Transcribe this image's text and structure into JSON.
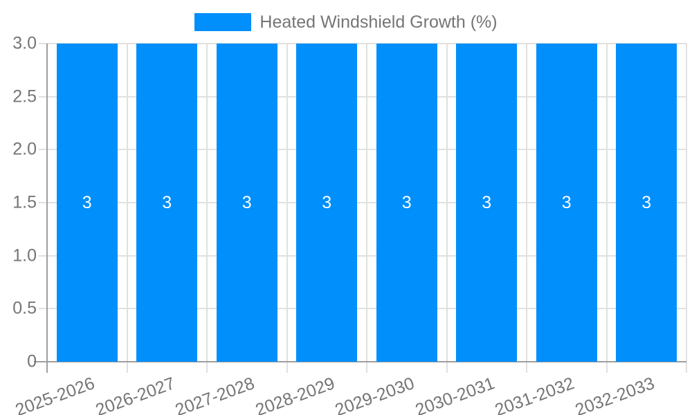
{
  "chart_data": {
    "type": "bar",
    "title": "Heated Windshield Growth (%)",
    "legend": {
      "label": "Heated Windshield Growth (%)",
      "position": "top"
    },
    "categories": [
      "2025-2026",
      "2026-2027",
      "2027-2028",
      "2028-2029",
      "2029-2030",
      "2030-2031",
      "2031-2032",
      "2032-2033"
    ],
    "series": [
      {
        "name": "Heated Windshield Growth (%)",
        "values": [
          3,
          3,
          3,
          3,
          3,
          3,
          3,
          3
        ]
      }
    ],
    "bar_value_labels": [
      "3",
      "3",
      "3",
      "3",
      "3",
      "3",
      "3",
      "3"
    ],
    "xlabel": "",
    "ylabel": "",
    "ylim": [
      0,
      3
    ],
    "yticks": [
      {
        "value": 3,
        "label": "3.0"
      },
      {
        "value": 2.5,
        "label": "2.5"
      },
      {
        "value": 2,
        "label": "2.0"
      },
      {
        "value": 1.5,
        "label": "1.5"
      },
      {
        "value": 1,
        "label": "1.0"
      },
      {
        "value": 0.5,
        "label": "0.5"
      },
      {
        "value": 0,
        "label": "0"
      }
    ],
    "grid": true,
    "colors": {
      "bar": "#008FFB",
      "grid": "#e0e0e0",
      "axis": "#9e9e9e",
      "tick_label": "#757575",
      "bar_label": "#ffffff"
    }
  }
}
